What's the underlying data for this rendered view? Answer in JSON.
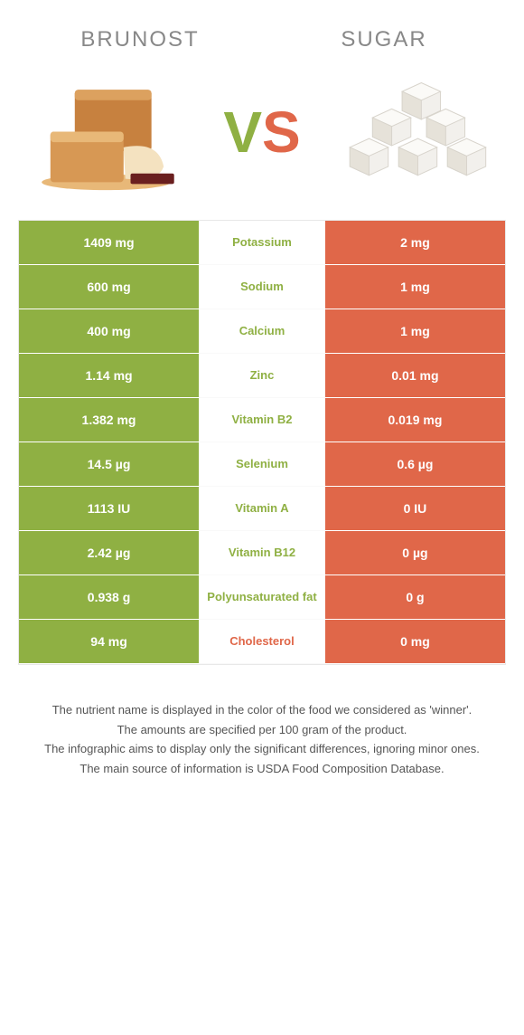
{
  "colors": {
    "left": "#8fb043",
    "right": "#e06749",
    "mid_bg": "#ffffff",
    "header_text": "#888888",
    "body_text": "#555555"
  },
  "header": {
    "left_title": "BRUNOST",
    "right_title": "SUGAR"
  },
  "vs": {
    "v": "V",
    "s": "S"
  },
  "rows": [
    {
      "label": "Potassium",
      "left": "1409 mg",
      "right": "2 mg",
      "winner": "left"
    },
    {
      "label": "Sodium",
      "left": "600 mg",
      "right": "1 mg",
      "winner": "left"
    },
    {
      "label": "Calcium",
      "left": "400 mg",
      "right": "1 mg",
      "winner": "left"
    },
    {
      "label": "Zinc",
      "left": "1.14 mg",
      "right": "0.01 mg",
      "winner": "left"
    },
    {
      "label": "Vitamin B2",
      "left": "1.382 mg",
      "right": "0.019 mg",
      "winner": "left"
    },
    {
      "label": "Selenium",
      "left": "14.5 µg",
      "right": "0.6 µg",
      "winner": "left"
    },
    {
      "label": "Vitamin A",
      "left": "1113 IU",
      "right": "0 IU",
      "winner": "left"
    },
    {
      "label": "Vitamin B12",
      "left": "2.42 µg",
      "right": "0 µg",
      "winner": "left"
    },
    {
      "label": "Polyunsaturated fat",
      "left": "0.938 g",
      "right": "0 g",
      "winner": "left"
    },
    {
      "label": "Cholesterol",
      "left": "94 mg",
      "right": "0 mg",
      "winner": "right"
    }
  ],
  "footnotes": [
    "The nutrient name is displayed in the color of the food we considered as 'winner'.",
    "The amounts are specified per 100 gram of the product.",
    "The infographic aims to display only the significant differences, ignoring minor ones.",
    "The main source of information is USDA Food Composition Database."
  ]
}
